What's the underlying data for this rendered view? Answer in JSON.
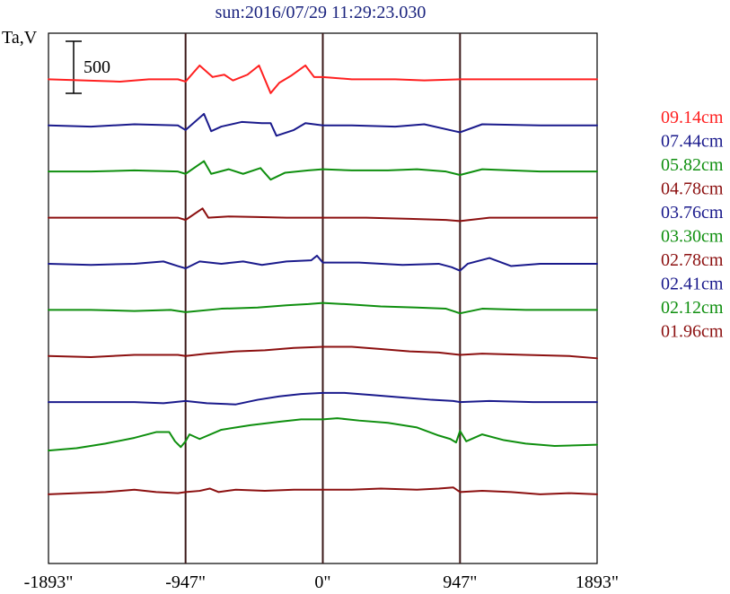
{
  "title": "sun:2016/07/29 11:29:23.030",
  "colors": {
    "background": "#ffffff",
    "title": "#1a237e",
    "axis": "#000000",
    "marker": "#3b1a1a",
    "red": "#ff2020",
    "navy": "#1a1a8c",
    "green": "#0f8f0f",
    "maroon": "#8c1010"
  },
  "chart_data": {
    "type": "line",
    "title": "sun:2016/07/29 11:29:23.030",
    "ylabel": "Ta,V",
    "xlabel": "",
    "x_ticks": [
      {
        "value": -1893,
        "label": "-1893\""
      },
      {
        "value": -947,
        "label": "-947\""
      },
      {
        "value": 0,
        "label": "0\""
      },
      {
        "value": 947,
        "label": "947\""
      },
      {
        "value": 1893,
        "label": "1893\""
      }
    ],
    "xlim": [
      -1893,
      1893
    ],
    "vertical_markers": [
      -947,
      0,
      947
    ],
    "grid": false,
    "scale_bar": {
      "value": 500,
      "label": "500",
      "unit": "Ta,V"
    },
    "legend_position": "right",
    "series": [
      {
        "name": "09.14cm",
        "color": "#ff2020",
        "baseline": 4200,
        "points": [
          [
            -1893,
            0
          ],
          [
            -1400,
            -20
          ],
          [
            -1200,
            0
          ],
          [
            -1000,
            0
          ],
          [
            -947,
            -20
          ],
          [
            -850,
            120
          ],
          [
            -760,
            20
          ],
          [
            -680,
            40
          ],
          [
            -620,
            -10
          ],
          [
            -520,
            40
          ],
          [
            -440,
            120
          ],
          [
            -360,
            -120
          ],
          [
            -300,
            -30
          ],
          [
            -220,
            30
          ],
          [
            -120,
            120
          ],
          [
            -60,
            20
          ],
          [
            0,
            20
          ],
          [
            200,
            0
          ],
          [
            500,
            0
          ],
          [
            700,
            -10
          ],
          [
            947,
            0
          ],
          [
            1200,
            0
          ],
          [
            1500,
            0
          ],
          [
            1893,
            0
          ]
        ]
      },
      {
        "name": "07.44cm",
        "color": "#1a1a8c",
        "baseline": 3800,
        "points": [
          [
            -1893,
            0
          ],
          [
            -1600,
            -10
          ],
          [
            -1300,
            10
          ],
          [
            -1000,
            0
          ],
          [
            -947,
            -40
          ],
          [
            -820,
            100
          ],
          [
            -770,
            -50
          ],
          [
            -700,
            -10
          ],
          [
            -560,
            30
          ],
          [
            -420,
            20
          ],
          [
            -360,
            20
          ],
          [
            -320,
            -90
          ],
          [
            -200,
            -40
          ],
          [
            -120,
            20
          ],
          [
            0,
            0
          ],
          [
            200,
            0
          ],
          [
            500,
            -10
          ],
          [
            700,
            10
          ],
          [
            947,
            -60
          ],
          [
            1100,
            10
          ],
          [
            1500,
            0
          ],
          [
            1893,
            0
          ]
        ]
      },
      {
        "name": "05.82cm",
        "color": "#0f8f0f",
        "baseline": 3400,
        "points": [
          [
            -1893,
            0
          ],
          [
            -1600,
            0
          ],
          [
            -1300,
            10
          ],
          [
            -1000,
            0
          ],
          [
            -947,
            -20
          ],
          [
            -820,
            90
          ],
          [
            -770,
            -20
          ],
          [
            -650,
            20
          ],
          [
            -550,
            -20
          ],
          [
            -430,
            30
          ],
          [
            -360,
            -70
          ],
          [
            -260,
            -10
          ],
          [
            -100,
            10
          ],
          [
            0,
            20
          ],
          [
            200,
            10
          ],
          [
            450,
            10
          ],
          [
            650,
            20
          ],
          [
            850,
            0
          ],
          [
            947,
            -30
          ],
          [
            1100,
            20
          ],
          [
            1500,
            0
          ],
          [
            1893,
            0
          ]
        ]
      },
      {
        "name": "04.78cm",
        "color": "#8c1010",
        "baseline": 3000,
        "points": [
          [
            -1893,
            0
          ],
          [
            -1600,
            0
          ],
          [
            -1300,
            0
          ],
          [
            -1000,
            0
          ],
          [
            -947,
            -20
          ],
          [
            -830,
            80
          ],
          [
            -790,
            0
          ],
          [
            -650,
            10
          ],
          [
            -450,
            5
          ],
          [
            -250,
            0
          ],
          [
            0,
            0
          ],
          [
            300,
            0
          ],
          [
            600,
            -10
          ],
          [
            850,
            -20
          ],
          [
            947,
            -30
          ],
          [
            1150,
            0
          ],
          [
            1500,
            0
          ],
          [
            1893,
            0
          ]
        ]
      },
      {
        "name": "03.76cm",
        "color": "#1a1a8c",
        "baseline": 2600,
        "points": [
          [
            -1893,
            0
          ],
          [
            -1600,
            -10
          ],
          [
            -1300,
            0
          ],
          [
            -1100,
            20
          ],
          [
            -1000,
            -20
          ],
          [
            -947,
            -40
          ],
          [
            -850,
            20
          ],
          [
            -700,
            0
          ],
          [
            -550,
            20
          ],
          [
            -420,
            -10
          ],
          [
            -250,
            20
          ],
          [
            -80,
            30
          ],
          [
            -40,
            70
          ],
          [
            0,
            10
          ],
          [
            250,
            10
          ],
          [
            550,
            -10
          ],
          [
            800,
            0
          ],
          [
            890,
            -30
          ],
          [
            947,
            -60
          ],
          [
            1000,
            0
          ],
          [
            1150,
            50
          ],
          [
            1300,
            -20
          ],
          [
            1500,
            0
          ],
          [
            1893,
            0
          ]
        ]
      },
      {
        "name": "03.30cm",
        "color": "#0f8f0f",
        "baseline": 2200,
        "points": [
          [
            -1893,
            0
          ],
          [
            -1600,
            0
          ],
          [
            -1300,
            -10
          ],
          [
            -1050,
            0
          ],
          [
            -947,
            -20
          ],
          [
            -700,
            10
          ],
          [
            -450,
            20
          ],
          [
            -250,
            40
          ],
          [
            -100,
            50
          ],
          [
            0,
            60
          ],
          [
            150,
            50
          ],
          [
            400,
            30
          ],
          [
            650,
            20
          ],
          [
            850,
            10
          ],
          [
            947,
            -30
          ],
          [
            1100,
            10
          ],
          [
            1400,
            0
          ],
          [
            1893,
            0
          ]
        ]
      },
      {
        "name": "02.78cm",
        "color": "#8c1010",
        "baseline": 1800,
        "points": [
          [
            -1893,
            0
          ],
          [
            -1600,
            -10
          ],
          [
            -1300,
            10
          ],
          [
            -1000,
            10
          ],
          [
            -947,
            0
          ],
          [
            -800,
            20
          ],
          [
            -600,
            40
          ],
          [
            -400,
            50
          ],
          [
            -200,
            70
          ],
          [
            0,
            80
          ],
          [
            200,
            80
          ],
          [
            400,
            60
          ],
          [
            600,
            40
          ],
          [
            800,
            30
          ],
          [
            947,
            10
          ],
          [
            1100,
            20
          ],
          [
            1400,
            10
          ],
          [
            1700,
            0
          ],
          [
            1893,
            -20
          ]
        ]
      },
      {
        "name": "02.41cm",
        "color": "#1a1a8c",
        "baseline": 1400,
        "points": [
          [
            -1893,
            0
          ],
          [
            -1600,
            0
          ],
          [
            -1300,
            0
          ],
          [
            -1100,
            -10
          ],
          [
            -947,
            10
          ],
          [
            -800,
            -10
          ],
          [
            -600,
            -20
          ],
          [
            -450,
            20
          ],
          [
            -300,
            50
          ],
          [
            -150,
            70
          ],
          [
            0,
            80
          ],
          [
            150,
            80
          ],
          [
            350,
            60
          ],
          [
            550,
            40
          ],
          [
            750,
            20
          ],
          [
            900,
            10
          ],
          [
            947,
            0
          ],
          [
            1150,
            10
          ],
          [
            1450,
            0
          ],
          [
            1893,
            0
          ]
        ]
      },
      {
        "name": "02.12cm",
        "color": "#0f8f0f",
        "baseline": 1000,
        "points": [
          [
            -1893,
            -20
          ],
          [
            -1700,
            0
          ],
          [
            -1500,
            40
          ],
          [
            -1300,
            90
          ],
          [
            -1150,
            140
          ],
          [
            -1060,
            140
          ],
          [
            -1020,
            60
          ],
          [
            -980,
            10
          ],
          [
            -947,
            60
          ],
          [
            -920,
            120
          ],
          [
            -850,
            80
          ],
          [
            -700,
            160
          ],
          [
            -500,
            200
          ],
          [
            -300,
            230
          ],
          [
            -150,
            250
          ],
          [
            0,
            250
          ],
          [
            100,
            260
          ],
          [
            250,
            240
          ],
          [
            450,
            220
          ],
          [
            650,
            180
          ],
          [
            800,
            110
          ],
          [
            880,
            80
          ],
          [
            920,
            50
          ],
          [
            947,
            150
          ],
          [
            990,
            60
          ],
          [
            1100,
            120
          ],
          [
            1250,
            70
          ],
          [
            1400,
            40
          ],
          [
            1600,
            20
          ],
          [
            1893,
            30
          ]
        ]
      },
      {
        "name": "01.96cm",
        "color": "#8c1010",
        "baseline": 600,
        "points": [
          [
            -1893,
            0
          ],
          [
            -1700,
            10
          ],
          [
            -1500,
            20
          ],
          [
            -1300,
            40
          ],
          [
            -1150,
            20
          ],
          [
            -1000,
            10
          ],
          [
            -947,
            20
          ],
          [
            -850,
            30
          ],
          [
            -780,
            50
          ],
          [
            -720,
            20
          ],
          [
            -600,
            40
          ],
          [
            -400,
            30
          ],
          [
            -200,
            40
          ],
          [
            0,
            40
          ],
          [
            200,
            40
          ],
          [
            400,
            50
          ],
          [
            650,
            40
          ],
          [
            800,
            50
          ],
          [
            900,
            60
          ],
          [
            947,
            20
          ],
          [
            1100,
            30
          ],
          [
            1300,
            20
          ],
          [
            1500,
            0
          ],
          [
            1700,
            10
          ],
          [
            1893,
            0
          ]
        ]
      }
    ]
  }
}
